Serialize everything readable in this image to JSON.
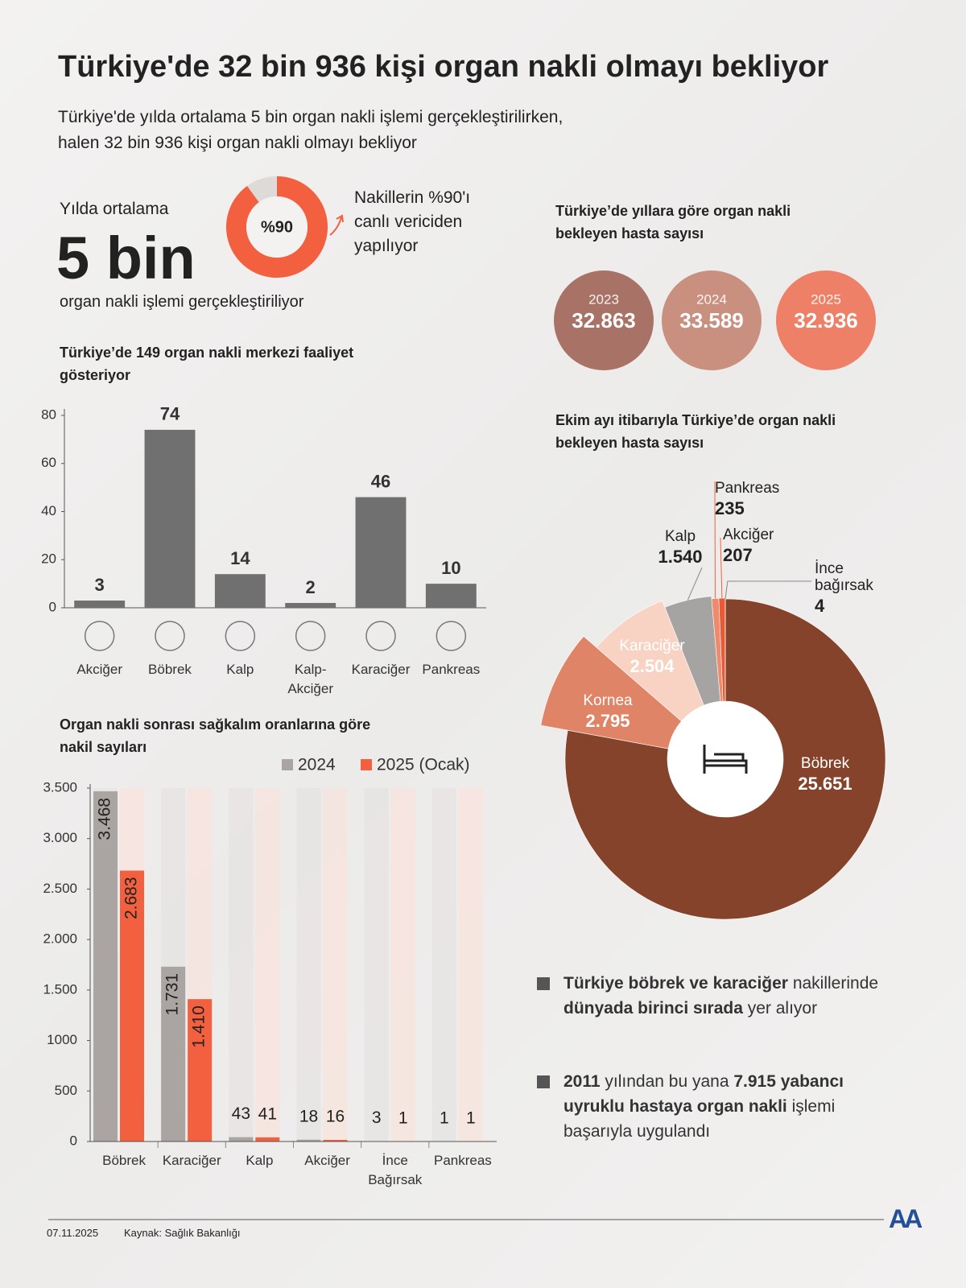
{
  "header": {
    "title": "Türkiye'de 32 bin 936 kişi organ nakli olmayı bekliyor",
    "subtitle": [
      "Türkiye'de yılda ortalama 5 bin organ nakli işlemi gerçekleştirilirken,",
      "halen 32 bin 936 kişi organ nakli olmayı bekliyor"
    ]
  },
  "highlight": {
    "lead": "Yılda ortalama",
    "value": "5 bin",
    "caption": "organ nakli işlemi gerçekleştiriliyor"
  },
  "chart_data": [
    {
      "type": "donut",
      "values": [
        90
      ],
      "value_labels": [
        "%90"
      ],
      "ylim": [
        0,
        100
      ],
      "color": "#f2603f",
      "track_color": "#dedad8",
      "annotation": [
        "Nakillerin %90'ı",
        "canlı vericiden",
        "yapılıyor"
      ]
    },
    {
      "type": "circles",
      "title": "Türkiye’de yıllara göre organ nakli bekleyen hasta sayısı",
      "categories": [
        "2023",
        "2024",
        "2025"
      ],
      "values": [
        32863,
        33589,
        32936
      ],
      "value_labels": [
        "32.863",
        "33.589",
        "32.936"
      ],
      "colors": [
        "#a87366",
        "#c9907f",
        "#ee8068"
      ]
    },
    {
      "type": "bar",
      "title": "Türkiye’de 149 organ nakli merkezi faaliyet gösteriyor",
      "categories": [
        "Akciğer",
        "Böbrek",
        "Kalp",
        "Kalp-Akciğer",
        "Karaciğer",
        "Pankreas"
      ],
      "values": [
        3,
        74,
        14,
        2,
        46,
        10
      ],
      "color": "#707070",
      "ylim": [
        0,
        80
      ],
      "yticks": [
        0,
        20,
        40,
        60,
        80
      ]
    },
    {
      "type": "pie",
      "title": "Ekim ayı itibarıyla Türkiye’de organ nakli bekleyen hasta sayısı",
      "categories": [
        "Böbrek",
        "Kornea",
        "Karaciğer",
        "Kalp",
        "Pankreas",
        "Akciğer",
        "İnce bağırsak"
      ],
      "values": [
        25651,
        2795,
        2504,
        1540,
        235,
        207,
        4
      ],
      "value_labels": [
        "25.651",
        "2.795",
        "2.504",
        "1.540",
        "235",
        "207",
        "4"
      ],
      "colors": [
        "#84432a",
        "#e08468",
        "#f8d3c3",
        "#a6a4a3",
        "#f08a6c",
        "#e85a35",
        "#8a8a8a"
      ]
    },
    {
      "type": "grouped_bar",
      "title": "Organ nakli sonrası sağkalım oranlarına göre nakil sayıları",
      "categories": [
        "Böbrek",
        "Karaciğer",
        "Kalp",
        "Akciğer",
        "İnce Bağırsak",
        "Pankreas"
      ],
      "series": [
        {
          "name": "2024",
          "color": "#aaa4a2",
          "values": [
            3468,
            1731,
            43,
            18,
            3,
            1
          ],
          "value_labels": [
            "3.468",
            "1.731",
            "43",
            "18",
            "3",
            "1"
          ]
        },
        {
          "name": "2025 (Ocak)",
          "color": "#f2603f",
          "values": [
            2683,
            1410,
            41,
            16,
            1,
            1
          ],
          "value_labels": [
            "2.683",
            "1.410",
            "41",
            "16",
            "1",
            "1"
          ]
        }
      ],
      "ylim": [
        0,
        3500
      ],
      "yticks": [
        0,
        500,
        1000,
        {
          "value": 1500,
          "label": "1.500"
        },
        {
          "value": 2000,
          "label": "2.000"
        },
        {
          "value": 2500,
          "label": "2.500"
        },
        {
          "value": 3000,
          "label": "3.000"
        },
        {
          "value": 3500,
          "label": "3.500"
        }
      ]
    }
  ],
  "notes": [
    {
      "segments": [
        {
          "text": "Türkiye böbrek ve karaciğer",
          "bold": true
        },
        {
          "text": " nakillerinde ",
          "bold": false
        },
        {
          "text": "dünyada birinci sırada",
          "bold": true
        },
        {
          "text": " yer alıyor",
          "bold": false
        }
      ]
    },
    {
      "segments": [
        {
          "text": "2011",
          "bold": true
        },
        {
          "text": " yılından bu yana ",
          "bold": false
        },
        {
          "text": "7.915 yabancı uyruklu hastaya organ nakli",
          "bold": true
        },
        {
          "text": " işlemi başarıyla uygulandı",
          "bold": false
        }
      ]
    }
  ],
  "footer": {
    "date": "07.11.2025",
    "source": "Kaynak: Sağlık Bakanlığı",
    "logo": "AA"
  }
}
